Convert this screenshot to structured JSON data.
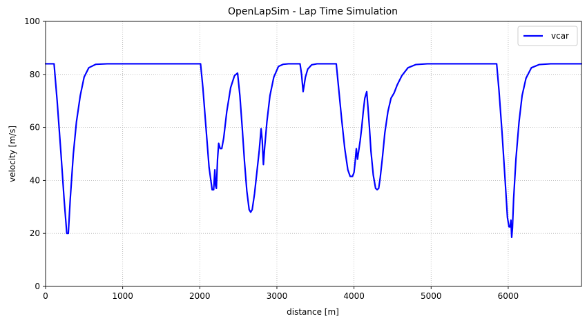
{
  "chart_data": {
    "type": "line",
    "title": "OpenLapSim - Lap Time Simulation",
    "xlabel": "distance [m]",
    "ylabel": "velocity [m/s]",
    "xlim": [
      0,
      6950
    ],
    "ylim": [
      0,
      100
    ],
    "xticks": [
      0,
      1000,
      2000,
      3000,
      4000,
      5000,
      6000
    ],
    "yticks": [
      0,
      20,
      40,
      60,
      80,
      100
    ],
    "xtick_labels": [
      "0",
      "1000",
      "2000",
      "3000",
      "4000",
      "5000",
      "6000"
    ],
    "ytick_labels": [
      "0",
      "20",
      "40",
      "60",
      "80",
      "100"
    ],
    "grid": true,
    "legend": {
      "position": "top-right",
      "entries": [
        "vcar"
      ]
    },
    "series": [
      {
        "name": "vcar",
        "color": "#0000ff",
        "x": [
          0,
          110,
          150,
          200,
          240,
          275,
          295,
          320,
          360,
          400,
          450,
          500,
          560,
          650,
          800,
          1500,
          2010,
          2040,
          2080,
          2120,
          2160,
          2180,
          2195,
          2205,
          2215,
          2230,
          2245,
          2265,
          2285,
          2310,
          2350,
          2400,
          2450,
          2490,
          2520,
          2550,
          2580,
          2610,
          2640,
          2660,
          2680,
          2710,
          2740,
          2770,
          2795,
          2810,
          2825,
          2840,
          2870,
          2910,
          2960,
          3020,
          3080,
          3150,
          3250,
          3300,
          3320,
          3340,
          3370,
          3400,
          3450,
          3520,
          3600,
          3700,
          3770,
          3800,
          3840,
          3880,
          3920,
          3950,
          3980,
          4000,
          4015,
          4030,
          4045,
          4060,
          4080,
          4100,
          4120,
          4140,
          4165,
          4180,
          4200,
          4220,
          4250,
          4280,
          4300,
          4320,
          4340,
          4370,
          4400,
          4440,
          4480,
          4520,
          4560,
          4620,
          4700,
          4800,
          4950,
          5200,
          5850,
          5880,
          5920,
          5960,
          5990,
          6010,
          6025,
          6035,
          6045,
          6055,
          6070,
          6100,
          6140,
          6180,
          6230,
          6300,
          6400,
          6550,
          6950
        ],
        "y": [
          84,
          84,
          70,
          50,
          33,
          20,
          20,
          33,
          50,
          62,
          72,
          79,
          82.5,
          83.8,
          84,
          84,
          84,
          75,
          60,
          45,
          36.5,
          36.5,
          44,
          38,
          37,
          48,
          54,
          52,
          52,
          56,
          66,
          75,
          79.5,
          80.5,
          72,
          60,
          47,
          36,
          29,
          28,
          29,
          35,
          43,
          51,
          59.5,
          55,
          46,
          52,
          62,
          72,
          79,
          83,
          83.8,
          84,
          84,
          84,
          80,
          73.5,
          79,
          82,
          83.6,
          84,
          84,
          84,
          84,
          75,
          63,
          52,
          44,
          41.5,
          41.5,
          43,
          47,
          52,
          48,
          51,
          55,
          60,
          66,
          71,
          73.5,
          68,
          60,
          51,
          42,
          37,
          36.5,
          37,
          41,
          49,
          58,
          66,
          71,
          73,
          76,
          79.5,
          82.5,
          83.7,
          84,
          84,
          84,
          74,
          58,
          40,
          26,
          22.5,
          22.5,
          25,
          18.5,
          22,
          33,
          48,
          62,
          72,
          78.5,
          82.5,
          83.7,
          84,
          84
        ]
      }
    ]
  }
}
